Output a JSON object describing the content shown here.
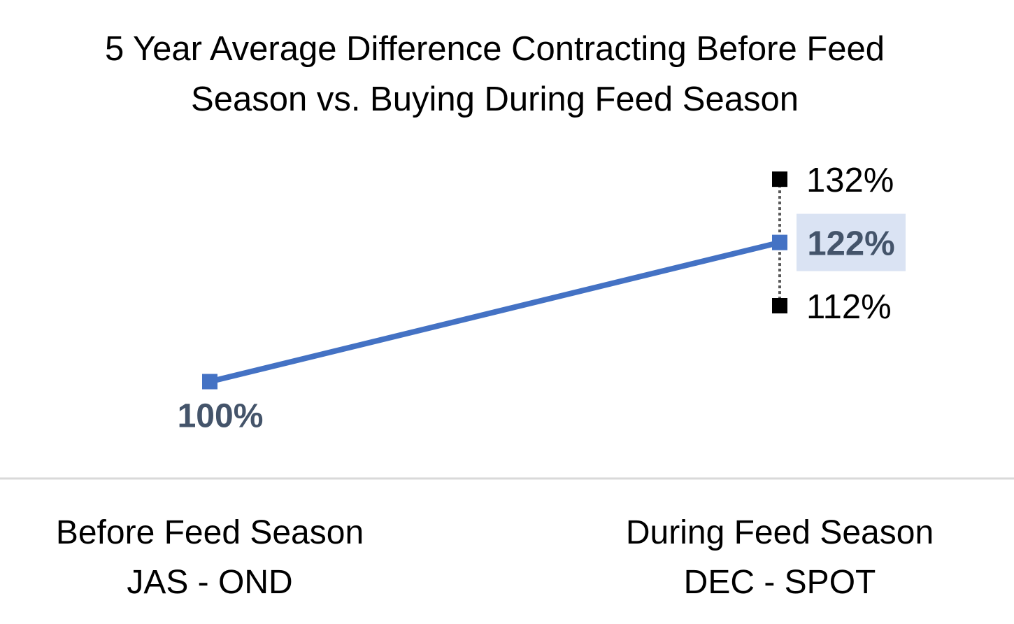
{
  "chart_data": {
    "type": "line",
    "title_line1": "5 Year Average Difference Contracting Before Feed",
    "title_line2": "Season vs. Buying During Feed Season",
    "categories": [
      {
        "line1": "Before Feed Season",
        "line2": "JAS - OND"
      },
      {
        "line1": "During Feed Season",
        "line2": "DEC - SPOT"
      }
    ],
    "series": [
      {
        "values": [
          100,
          122
        ],
        "labels": [
          "100%",
          "122%"
        ],
        "color": "#4472C4"
      }
    ],
    "range": {
      "category_index": 1,
      "high": 132,
      "low": 112,
      "high_label": "132%",
      "low_label": "112%",
      "color": "#000000"
    },
    "ylim": [
      88,
      136
    ],
    "grid": false,
    "xlabel": "",
    "ylabel": "",
    "colors": {
      "label_text": "#44546A",
      "label_highlight": "#DAE3F3",
      "axis_line": "#D9D9D9"
    }
  }
}
